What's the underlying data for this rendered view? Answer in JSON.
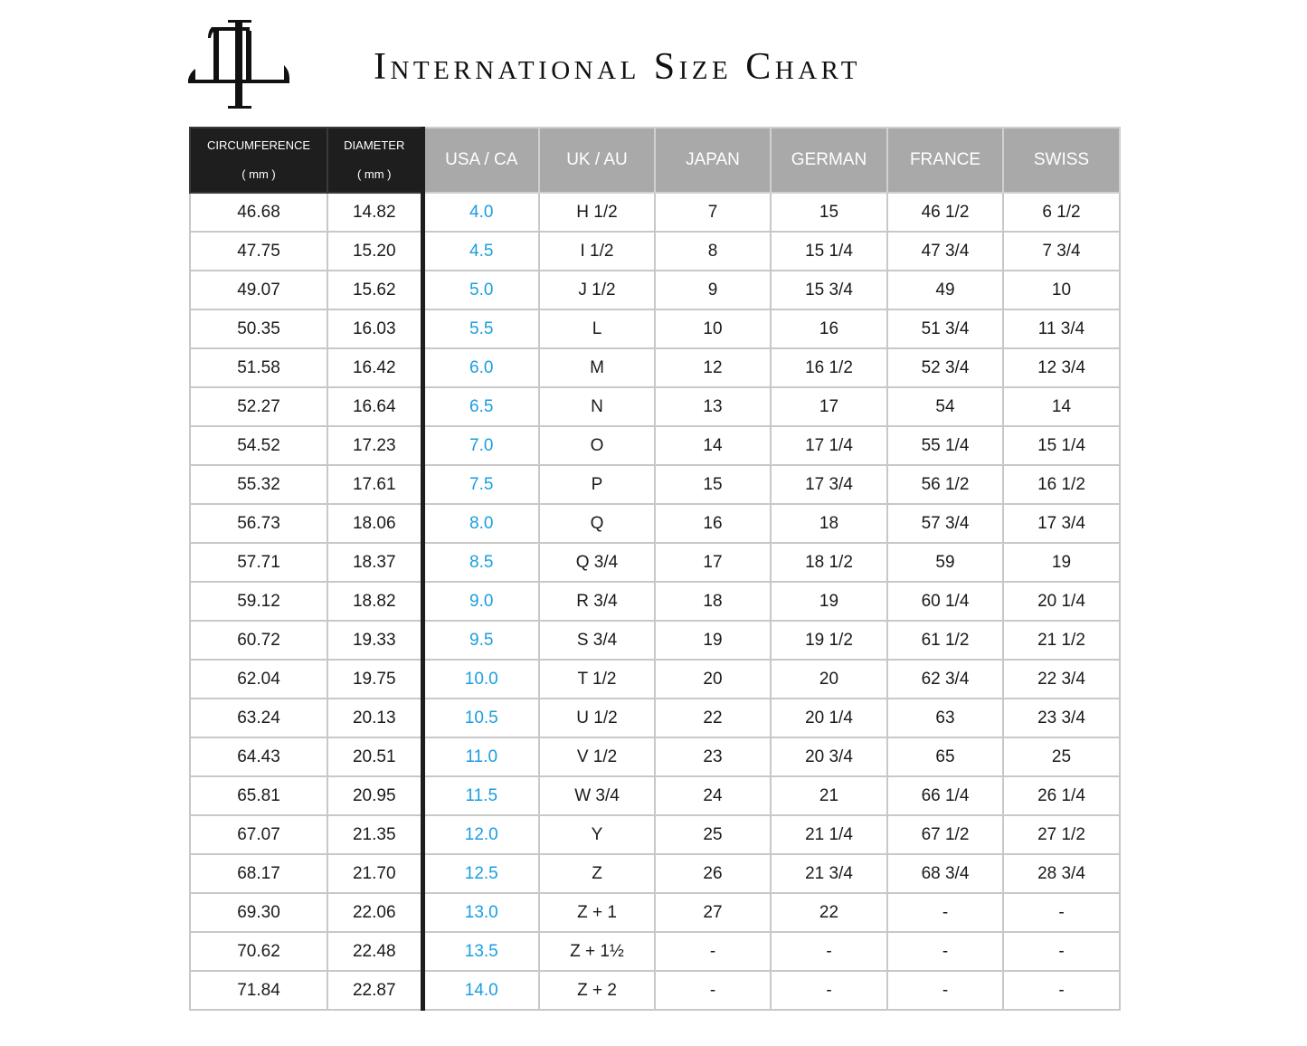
{
  "title": "International Size Chart",
  "logo": {
    "text": "TIL monogram"
  },
  "colors": {
    "header_dark": "#1e1e1e",
    "header_grey": "#a9a9a9",
    "usa_text": "#1a9ee0"
  },
  "headers": [
    {
      "label": "CIRCUMFERENCE",
      "unit": "( mm )"
    },
    {
      "label": "DIAMETER",
      "unit": "( mm )"
    },
    {
      "label": "USA / CA"
    },
    {
      "label": "UK / AU"
    },
    {
      "label": "JAPAN"
    },
    {
      "label": "GERMAN"
    },
    {
      "label": "FRANCE"
    },
    {
      "label": "SWISS"
    }
  ],
  "rows": [
    [
      "46.68",
      "14.82",
      "4.0",
      "H 1/2",
      "7",
      "15",
      "46 1/2",
      "6 1/2"
    ],
    [
      "47.75",
      "15.20",
      "4.5",
      "I 1/2",
      "8",
      "15 1/4",
      "47 3/4",
      "7 3/4"
    ],
    [
      "49.07",
      "15.62",
      "5.0",
      "J 1/2",
      "9",
      "15 3/4",
      "49",
      "10"
    ],
    [
      "50.35",
      "16.03",
      "5.5",
      "L",
      "10",
      "16",
      "51 3/4",
      "11 3/4"
    ],
    [
      "51.58",
      "16.42",
      "6.0",
      "M",
      "12",
      "16 1/2",
      "52 3/4",
      "12 3/4"
    ],
    [
      "52.27",
      "16.64",
      "6.5",
      "N",
      "13",
      "17",
      "54",
      "14"
    ],
    [
      "54.52",
      "17.23",
      "7.0",
      "O",
      "14",
      "17 1/4",
      "55 1/4",
      "15 1/4"
    ],
    [
      "55.32",
      "17.61",
      "7.5",
      "P",
      "15",
      "17 3/4",
      "56 1/2",
      "16 1/2"
    ],
    [
      "56.73",
      "18.06",
      "8.0",
      "Q",
      "16",
      "18",
      "57 3/4",
      "17 3/4"
    ],
    [
      "57.71",
      "18.37",
      "8.5",
      "Q 3/4",
      "17",
      "18 1/2",
      "59",
      "19"
    ],
    [
      "59.12",
      "18.82",
      "9.0",
      "R 3/4",
      "18",
      "19",
      "60 1/4",
      "20 1/4"
    ],
    [
      "60.72",
      "19.33",
      "9.5",
      "S 3/4",
      "19",
      "19 1/2",
      "61 1/2",
      "21 1/2"
    ],
    [
      "62.04",
      "19.75",
      "10.0",
      "T 1/2",
      "20",
      "20",
      "62 3/4",
      "22 3/4"
    ],
    [
      "63.24",
      "20.13",
      "10.5",
      "U 1/2",
      "22",
      "20 1/4",
      "63",
      "23 3/4"
    ],
    [
      "64.43",
      "20.51",
      "11.0",
      "V 1/2",
      "23",
      "20 3/4",
      "65",
      "25"
    ],
    [
      "65.81",
      "20.95",
      "11.5",
      "W 3/4",
      "24",
      "21",
      "66 1/4",
      "26 1/4"
    ],
    [
      "67.07",
      "21.35",
      "12.0",
      "Y",
      "25",
      "21 1/4",
      "67 1/2",
      "27 1/2"
    ],
    [
      "68.17",
      "21.70",
      "12.5",
      "Z",
      "26",
      "21 3/4",
      "68 3/4",
      "28 3/4"
    ],
    [
      "69.30",
      "22.06",
      "13.0",
      "Z + 1",
      "27",
      "22",
      "-",
      "-"
    ],
    [
      "70.62",
      "22.48",
      "13.5",
      "Z + 1½",
      "-",
      "-",
      "-",
      "-"
    ],
    [
      "71.84",
      "22.87",
      "14.0",
      "Z + 2",
      "-",
      "-",
      "-",
      "-"
    ]
  ]
}
